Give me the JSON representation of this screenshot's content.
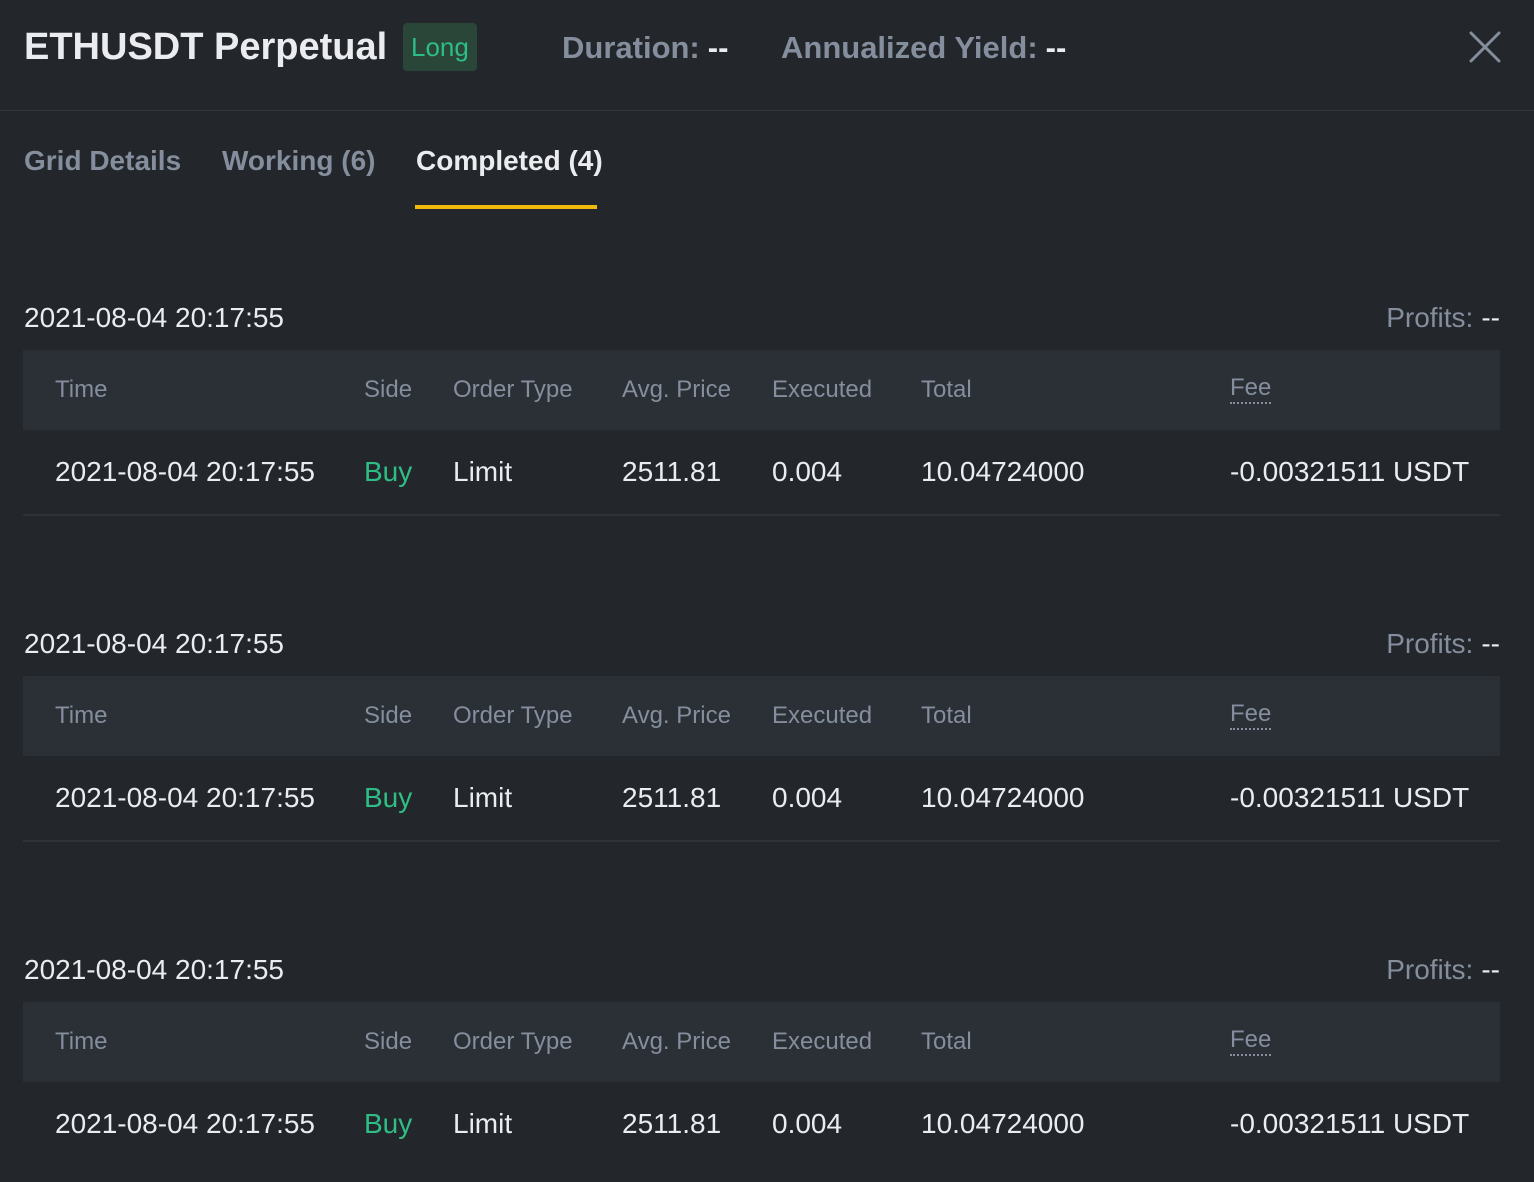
{
  "header": {
    "title": "ETHUSDT Perpetual",
    "badge": "Long",
    "duration_label": "Duration:",
    "duration_value": "--",
    "yield_label": "Annualized Yield:",
    "yield_value": "--",
    "close_icon": "close-icon"
  },
  "tabs": [
    {
      "label": "Grid Details",
      "active": false
    },
    {
      "label": "Working (6)",
      "active": false
    },
    {
      "label": "Completed (4)",
      "active": true
    }
  ],
  "columns": {
    "time": "Time",
    "side": "Side",
    "order_type": "Order Type",
    "avg_price": "Avg. Price",
    "executed": "Executed",
    "total": "Total",
    "fee": "Fee"
  },
  "groups": [
    {
      "date": "2021-08-04 20:17:55",
      "profit_label": "Profits:",
      "profit_value": "--",
      "row": {
        "time": "2021-08-04 20:17:55",
        "side": "Buy",
        "order_type": "Limit",
        "avg_price": "2511.81",
        "executed": "0.004",
        "total": "10.04724000",
        "fee": "-0.00321511 USDT"
      }
    },
    {
      "date": "2021-08-04 20:17:55",
      "profit_label": "Profits:",
      "profit_value": "--",
      "row": {
        "time": "2021-08-04 20:17:55",
        "side": "Buy",
        "order_type": "Limit",
        "avg_price": "2511.81",
        "executed": "0.004",
        "total": "10.04724000",
        "fee": "-0.00321511 USDT"
      }
    },
    {
      "date": "2021-08-04 20:17:55",
      "profit_label": "Profits:",
      "profit_value": "--",
      "row": {
        "time": "2021-08-04 20:17:55",
        "side": "Buy",
        "order_type": "Limit",
        "avg_price": "2511.81",
        "executed": "0.004",
        "total": "10.04724000",
        "fee": "-0.00321511 USDT"
      }
    }
  ],
  "colors": {
    "background": "#23262b",
    "header_row": "#2b2f36",
    "accent": "#f0b90b",
    "buy": "#2ebd85",
    "muted": "#848e9c",
    "text": "#eaecef"
  }
}
